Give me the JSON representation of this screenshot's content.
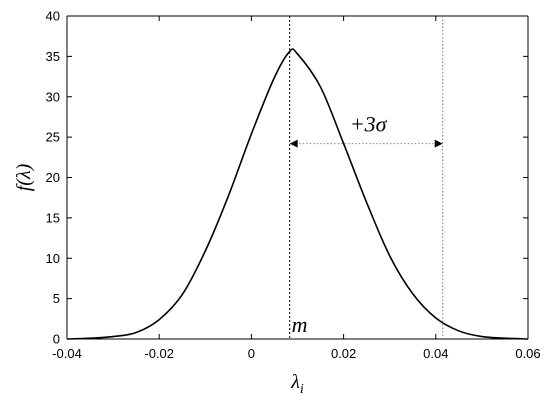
{
  "chart_data": {
    "type": "line",
    "title": "",
    "xlabel": "λ",
    "xlabel_sub": "i",
    "ylabel": "f(λ)",
    "xlim": [
      -0.04,
      0.06
    ],
    "ylim": [
      0,
      40
    ],
    "x_ticks": [
      -0.04,
      -0.02,
      0,
      0.02,
      0.04,
      0.06
    ],
    "x_tick_labels": [
      "-0.04",
      "-0.02",
      "0",
      "0.02",
      "0.04",
      "0.06"
    ],
    "y_ticks": [
      0,
      5,
      10,
      15,
      20,
      25,
      30,
      35,
      40
    ],
    "y_tick_labels": [
      "0",
      "5",
      "10",
      "15",
      "20",
      "25",
      "30",
      "35",
      "40"
    ],
    "grid": false,
    "series": [
      {
        "x": [
          -0.04,
          -0.035,
          -0.03,
          -0.025,
          -0.02,
          -0.015,
          -0.01,
          -0.005,
          0,
          0.005,
          0.0083,
          0.01,
          0.015,
          0.02,
          0.025,
          0.03,
          0.035,
          0.04,
          0.045,
          0.05,
          0.055,
          0.06
        ],
        "y": [
          0.0,
          0.1,
          0.3,
          0.8,
          2.4,
          5.5,
          10.9,
          17.7,
          25.4,
          32.4,
          35.6,
          35.3,
          31.2,
          24.2,
          16.9,
          10.3,
          5.6,
          2.6,
          1.0,
          0.3,
          0.1,
          0.0
        ]
      }
    ],
    "annotations": {
      "mean_x": 0.0083,
      "mean_label": "m",
      "sigma_line_x": 0.0415,
      "arrow_y": 24.2,
      "arrow_label": "+3σ"
    }
  }
}
